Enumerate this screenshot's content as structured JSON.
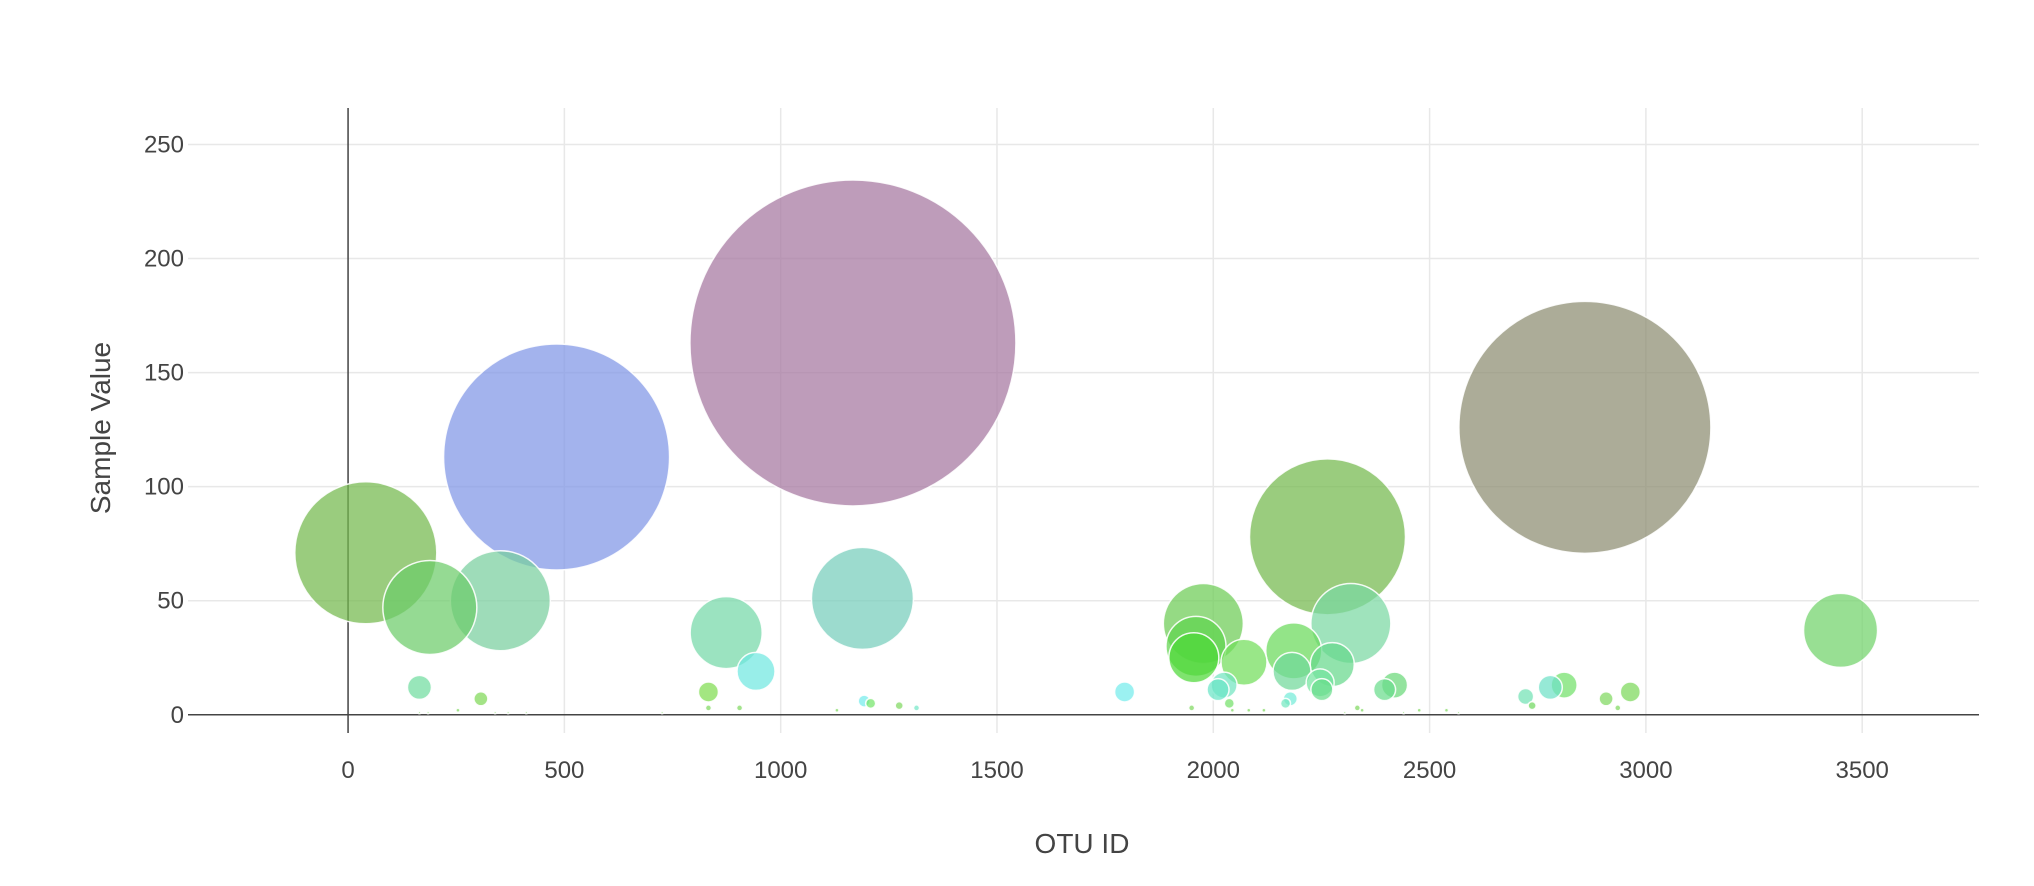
{
  "chart_data": {
    "type": "scatter",
    "mode": "bubble",
    "title": "",
    "xlabel": "OTU ID",
    "ylabel": "Sample Value",
    "xlim": [
      -370,
      3770
    ],
    "ylim": [
      -8,
      266
    ],
    "xticks": [
      0,
      500,
      1000,
      1500,
      2000,
      2500,
      3000,
      3500
    ],
    "yticks": [
      0,
      50,
      100,
      150,
      200,
      250
    ],
    "grid": true,
    "legend": "none",
    "points": [
      {
        "x": 1167,
        "y": 163,
        "color": "#a576a0"
      },
      {
        "x": 2859,
        "y": 126,
        "color": "#8c8c70"
      },
      {
        "x": 482,
        "y": 113,
        "color": "#7f96e6"
      },
      {
        "x": 2264,
        "y": 78,
        "color": "#73b84c"
      },
      {
        "x": 41,
        "y": 71,
        "color": "#73b84c"
      },
      {
        "x": 1189,
        "y": 51,
        "color": "#76cdbb"
      },
      {
        "x": 352,
        "y": 50,
        "color": "#78cf9e"
      },
      {
        "x": 189,
        "y": 47,
        "color": "#6ccc6a"
      },
      {
        "x": 2318,
        "y": 40,
        "color": "#7ad8a2"
      },
      {
        "x": 1977,
        "y": 40,
        "color": "#6ccc55"
      },
      {
        "x": 3450,
        "y": 37,
        "color": "#70d26a"
      },
      {
        "x": 874,
        "y": 36,
        "color": "#74d8a8"
      },
      {
        "x": 1960,
        "y": 30,
        "color": "#5fd44e"
      },
      {
        "x": 2186,
        "y": 28,
        "color": "#6ad95a"
      },
      {
        "x": 1955,
        "y": 25,
        "color": "#4dd838"
      },
      {
        "x": 2071,
        "y": 23,
        "color": "#72de5a"
      },
      {
        "x": 2275,
        "y": 22,
        "color": "#66d88c"
      },
      {
        "x": 2182,
        "y": 19,
        "color": "#70d89a"
      },
      {
        "x": 943,
        "y": 19,
        "color": "#70e8e0"
      },
      {
        "x": 2247,
        "y": 14,
        "color": "#74e4a0"
      },
      {
        "x": 2419,
        "y": 13,
        "color": "#6ad878"
      },
      {
        "x": 2811,
        "y": 13,
        "color": "#72e06a"
      },
      {
        "x": 2025,
        "y": 13,
        "color": "#72e4c0"
      },
      {
        "x": 2779,
        "y": 12,
        "color": "#6ee0c6"
      },
      {
        "x": 165,
        "y": 12,
        "color": "#70dca0"
      },
      {
        "x": 2251,
        "y": 11,
        "color": "#68dc8a"
      },
      {
        "x": 2396,
        "y": 11,
        "color": "#6adc8c"
      },
      {
        "x": 2011,
        "y": 11,
        "color": "#6ae4c6"
      },
      {
        "x": 833,
        "y": 10,
        "color": "#80dc50"
      },
      {
        "x": 1795,
        "y": 10,
        "color": "#74ecec"
      },
      {
        "x": 2964,
        "y": 10,
        "color": "#7cd85a"
      },
      {
        "x": 2722,
        "y": 8,
        "color": "#72e2b4"
      },
      {
        "x": 307,
        "y": 7,
        "color": "#80d858"
      },
      {
        "x": 2908,
        "y": 7,
        "color": "#80d860"
      },
      {
        "x": 2178,
        "y": 7,
        "color": "#74ecd8"
      },
      {
        "x": 1193,
        "y": 6,
        "color": "#74ecec"
      },
      {
        "x": 1208,
        "y": 5,
        "color": "#74e46a"
      },
      {
        "x": 2037,
        "y": 5,
        "color": "#74e06a"
      },
      {
        "x": 2167,
        "y": 5,
        "color": "#74e8c0"
      },
      {
        "x": 2737,
        "y": 4,
        "color": "#70d860"
      },
      {
        "x": 1274,
        "y": 4,
        "color": "#80d860"
      },
      {
        "x": 905,
        "y": 3,
        "color": "#80d860"
      },
      {
        "x": 1314,
        "y": 3,
        "color": "#74e8c8"
      },
      {
        "x": 2333,
        "y": 3,
        "color": "#80d860"
      },
      {
        "x": 2935,
        "y": 3,
        "color": "#80d860"
      },
      {
        "x": 1950,
        "y": 3,
        "color": "#80d860"
      },
      {
        "x": 833,
        "y": 3,
        "color": "#80d860"
      },
      {
        "x": 254,
        "y": 2,
        "color": "#80d860"
      },
      {
        "x": 2044,
        "y": 2,
        "color": "#80d860"
      },
      {
        "x": 2082,
        "y": 2,
        "color": "#80d860"
      },
      {
        "x": 2117,
        "y": 2,
        "color": "#80d860"
      },
      {
        "x": 2344,
        "y": 2,
        "color": "#80d860"
      },
      {
        "x": 2476,
        "y": 2,
        "color": "#80d860"
      },
      {
        "x": 2539,
        "y": 2,
        "color": "#80d860"
      },
      {
        "x": 1130,
        "y": 2,
        "color": "#80d860"
      },
      {
        "x": 165,
        "y": 1,
        "color": "#80d860"
      },
      {
        "x": 185,
        "y": 1,
        "color": "#80d860"
      },
      {
        "x": 340,
        "y": 1,
        "color": "#80d860"
      },
      {
        "x": 370,
        "y": 1,
        "color": "#80d860"
      },
      {
        "x": 412,
        "y": 1,
        "color": "#80d860"
      },
      {
        "x": 726,
        "y": 1,
        "color": "#80d860"
      },
      {
        "x": 2304,
        "y": 1,
        "color": "#80d860"
      },
      {
        "x": 2440,
        "y": 1,
        "color": "#80d860"
      },
      {
        "x": 2567,
        "y": 1,
        "color": "#80d860"
      }
    ]
  }
}
